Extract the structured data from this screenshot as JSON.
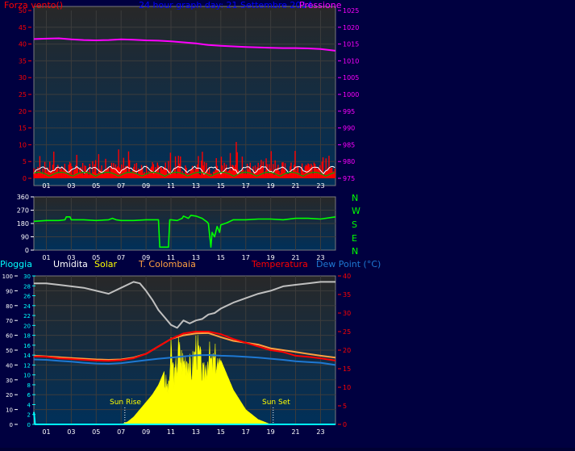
{
  "colors": {
    "page_bg": "#000040",
    "plot_top": "#282828",
    "plot_bottom": "#00305a",
    "grid": "#3c3c3c",
    "frame": "#7a7a7a",
    "axis_text": "#ffffff",
    "wind": "#ff0000",
    "gust_white": "#ffffff",
    "wind_avg": "#00aa00",
    "pressure": "#ff00ff",
    "direction": "#00ff00",
    "rain": "#00ffff",
    "humidity": "#c0c0c0",
    "solar": "#ffff00",
    "indoor_temp": "#ffa040",
    "temperature": "#ff0000",
    "dewpoint": "#1e78d2",
    "sun_label": "#ffff00",
    "title_blue": "#0000ff"
  },
  "header": {
    "wind_label": "Forza vento()",
    "title": "24 hour graph day:  21 Settembre 2014",
    "pressure_label": "Pressione"
  },
  "legend_bottom": {
    "rain": "Pioggia",
    "humidity": "Umidita",
    "solar": "Solar",
    "indoor": "T. Colombaia",
    "temp": "Temperatura",
    "dew": "Dew Point (°C)"
  },
  "compass": [
    "N",
    "W",
    "S",
    "E",
    "N"
  ],
  "annotations": {
    "sunrise": "Sun Rise",
    "sunset": "Sun Set",
    "sunrise_hour": 7.3,
    "sunset_hour": 19.2
  },
  "chart_data": [
    {
      "type": "line",
      "name": "wind-pressure",
      "x_ticks": [
        "01",
        "03",
        "05",
        "07",
        "09",
        "11",
        "13",
        "15",
        "17",
        "19",
        "21",
        "23"
      ],
      "x_tick_hours": [
        1,
        3,
        5,
        7,
        9,
        11,
        13,
        15,
        17,
        19,
        21,
        23
      ],
      "xlim": [
        0,
        24.2
      ],
      "left_axis": {
        "label": "Forza vento()",
        "ylim": [
          0,
          50
        ],
        "ticks": [
          "0",
          "5",
          "10",
          "15",
          "20",
          "25",
          "30",
          "35",
          "40",
          "45",
          "50"
        ]
      },
      "right_axis": {
        "label": "Pressione",
        "ylim": [
          975,
          1025
        ],
        "ticks": [
          "975",
          "980",
          "985",
          "990",
          "995",
          "1000",
          "1005",
          "1010",
          "1015",
          "1020",
          "1025"
        ]
      },
      "series": [
        {
          "name": "Pressione",
          "axis": "right",
          "x": [
            0,
            1,
            2,
            3,
            4,
            5,
            6,
            7,
            8,
            9,
            10,
            11,
            12,
            13,
            14,
            15,
            16,
            17,
            18,
            19,
            20,
            21,
            22,
            23,
            24.2
          ],
          "y": [
            1016.5,
            1016.6,
            1016.7,
            1016.4,
            1016.2,
            1016.1,
            1016.2,
            1016.4,
            1016.3,
            1016.1,
            1016,
            1015.8,
            1015.5,
            1015.2,
            1014.7,
            1014.5,
            1014.3,
            1014.1,
            1014,
            1013.9,
            1013.8,
            1013.8,
            1013.7,
            1013.5,
            1013
          ]
        }
      ]
    },
    {
      "type": "line",
      "name": "wind-direction",
      "x_ticks": [
        "01",
        "03",
        "05",
        "07",
        "09",
        "11",
        "13",
        "15",
        "17",
        "19",
        "21",
        "23"
      ],
      "xlim": [
        0,
        24.2
      ],
      "left_axis": {
        "ylim": [
          0,
          360
        ],
        "ticks": [
          "0",
          "90",
          "180",
          "270",
          "360"
        ]
      },
      "right_axis": {
        "ticks": [
          "N",
          "W",
          "S",
          "E",
          "N"
        ]
      },
      "series": [
        {
          "name": "Direzione",
          "x": [
            0,
            1,
            2,
            2.5,
            2.6,
            2.9,
            3,
            4,
            5,
            6,
            6.3,
            6.6,
            7,
            8,
            9,
            10,
            10.1,
            10.8,
            10.9,
            11,
            11.5,
            11.9,
            12,
            12.4,
            12.6,
            13,
            13.5,
            13.9,
            14,
            14.2,
            14.3,
            14.5,
            14.7,
            14.9,
            15,
            15.5,
            16,
            17,
            18,
            19,
            20,
            21,
            22,
            23,
            24.2
          ],
          "y": [
            195,
            200,
            200,
            205,
            225,
            225,
            205,
            205,
            200,
            205,
            215,
            205,
            200,
            200,
            205,
            205,
            20,
            20,
            205,
            205,
            200,
            215,
            230,
            215,
            235,
            230,
            215,
            190,
            180,
            20,
            120,
            90,
            160,
            120,
            170,
            185,
            205,
            205,
            210,
            210,
            205,
            215,
            215,
            210,
            225
          ]
        }
      ]
    },
    {
      "type": "line",
      "name": "temp-humidity-solar",
      "x_ticks": [
        "01",
        "03",
        "05",
        "07",
        "09",
        "11",
        "13",
        "15",
        "17",
        "19",
        "21",
        "23"
      ],
      "xlim": [
        0,
        24.2
      ],
      "left_axes": [
        {
          "ylim": [
            0,
            100
          ],
          "ticks": [
            "0",
            "10",
            "20",
            "30",
            "40",
            "50",
            "60",
            "70",
            "80",
            "90",
            "100"
          ]
        },
        {
          "ylim": [
            0,
            30
          ],
          "ticks": [
            "0",
            "2",
            "4",
            "6",
            "8",
            "10",
            "12",
            "14",
            "16",
            "18",
            "20",
            "22",
            "24",
            "26",
            "28",
            "30"
          ]
        }
      ],
      "right_axis": {
        "ylim": [
          0,
          40
        ],
        "ticks": [
          "0",
          "5",
          "10",
          "15",
          "20",
          "25",
          "30",
          "35",
          "40"
        ]
      },
      "series": [
        {
          "name": "Umidita",
          "axis": "left100",
          "x": [
            0,
            1,
            2,
            3,
            4,
            5,
            6,
            7,
            8,
            8.5,
            9,
            9.5,
            10,
            10.5,
            11,
            11.5,
            12,
            12.5,
            13,
            13.5,
            14,
            14.5,
            15,
            15.5,
            16,
            17,
            18,
            19,
            20,
            21,
            22,
            23,
            24.2
          ],
          "y": [
            95,
            95,
            94,
            93,
            92,
            90,
            88,
            92,
            96,
            95,
            90,
            84,
            77,
            72,
            67,
            65,
            70,
            68,
            70,
            71,
            74,
            75,
            78,
            80,
            82,
            85,
            88,
            90,
            93,
            94,
            95,
            96,
            96
          ]
        },
        {
          "name": "Solar",
          "axis": "left30",
          "x": [
            7,
            7.5,
            8,
            8.5,
            9,
            9.5,
            10,
            10.5,
            10.8,
            11,
            11.3,
            11.6,
            12,
            12.3,
            12.6,
            13,
            13.3,
            13.6,
            14,
            14.3,
            14.6,
            15,
            15.5,
            16,
            16.5,
            17,
            17.5,
            18,
            18.5,
            19
          ],
          "y": [
            0,
            0.5,
            1.5,
            3,
            4.5,
            6,
            8,
            11,
            9,
            18,
            12,
            19,
            16,
            18,
            13,
            20,
            17,
            12,
            18,
            15,
            17,
            13,
            10,
            7,
            5,
            3,
            2,
            1,
            0.5,
            0
          ]
        },
        {
          "name": "T. Colombaia",
          "axis": "right",
          "x": [
            0,
            1,
            2,
            3,
            4,
            5,
            6,
            7,
            8,
            9,
            10,
            11,
            12,
            13,
            14,
            15,
            16,
            17,
            18,
            19,
            20,
            21,
            22,
            23,
            24.2
          ],
          "y": [
            18.5,
            18.3,
            18.1,
            17.9,
            17.7,
            17.5,
            17.4,
            17.5,
            18,
            19,
            21,
            23,
            24,
            24.5,
            24.6,
            23.5,
            22.5,
            22,
            21.5,
            20.5,
            20,
            19.5,
            19,
            18.5,
            18
          ]
        },
        {
          "name": "Temperatura",
          "axis": "right",
          "x": [
            0,
            1,
            2,
            3,
            4,
            5,
            6,
            7,
            8,
            9,
            10,
            11,
            12,
            13,
            14,
            15,
            16,
            17,
            18,
            19,
            20,
            21,
            22,
            23,
            24.2
          ],
          "y": [
            18.3,
            18.2,
            17.8,
            17.6,
            17.4,
            17.2,
            17.1,
            17.3,
            17.8,
            19,
            21,
            23,
            24.5,
            25,
            25,
            24.3,
            23,
            22,
            21,
            20,
            19.5,
            18.5,
            18.2,
            17.8,
            17.2
          ]
        },
        {
          "name": "Dew Point",
          "axis": "right",
          "x": [
            0,
            1,
            2,
            3,
            4,
            5,
            6,
            7,
            8,
            9,
            10,
            11,
            12,
            13,
            14,
            15,
            16,
            17,
            18,
            19,
            20,
            21,
            22,
            23,
            24.2
          ],
          "y": [
            17.5,
            17.4,
            17.1,
            16.9,
            16.6,
            16.4,
            16.3,
            16.5,
            16.9,
            17.3,
            17.7,
            18,
            18.3,
            18.6,
            18.7,
            18.5,
            18.4,
            18.2,
            18,
            17.7,
            17.4,
            17,
            16.8,
            16.6,
            16
          ]
        },
        {
          "name": "Pioggia",
          "axis": "left30",
          "x": [
            0,
            0.1,
            0.2,
            24.2
          ],
          "y": [
            2.5,
            0,
            0,
            0
          ]
        }
      ]
    }
  ]
}
